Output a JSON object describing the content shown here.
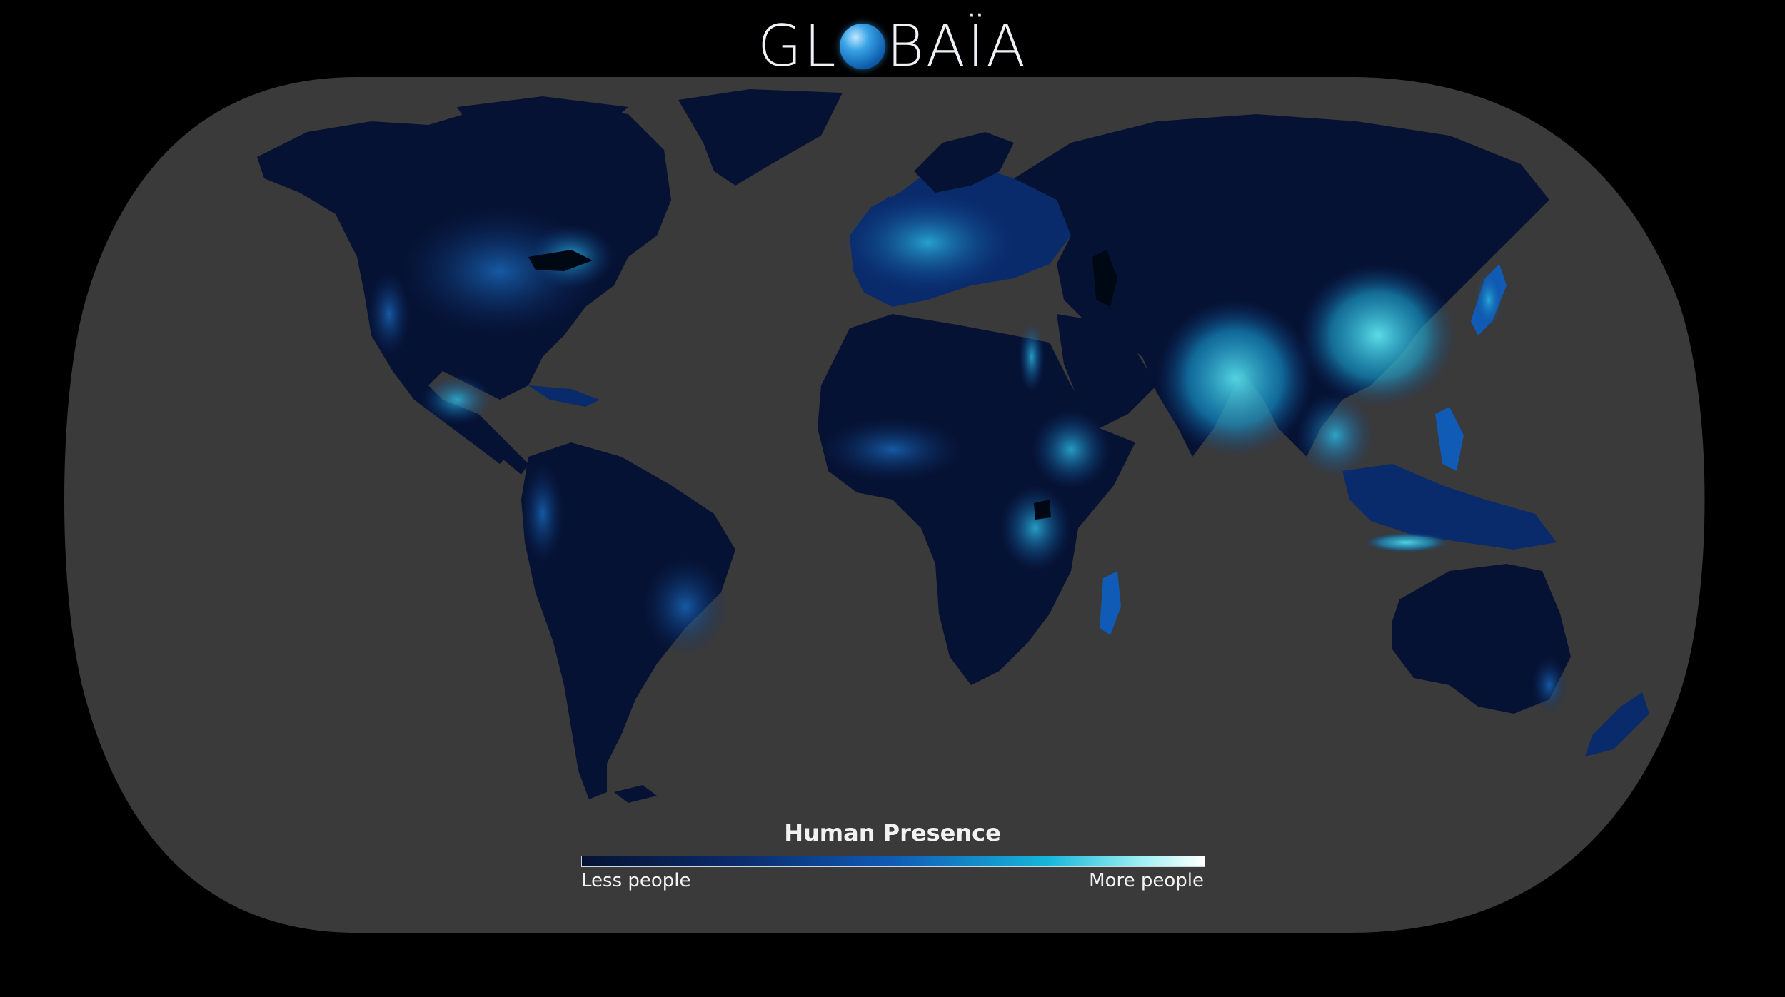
{
  "brand": {
    "prefix": "GL",
    "suffix": "BAÏA"
  },
  "legend": {
    "title": "Human Presence",
    "min_label": "Less people",
    "max_label": "More people",
    "colors": [
      "#061233",
      "#0a2b6b",
      "#0f5bb5",
      "#17b7d9",
      "#9ff0f2",
      "#ffffff"
    ]
  },
  "map": {
    "ocean_color": "#3a3a3a",
    "background_color": "#000000",
    "land_base_color": "#061233",
    "highlight_color": "#2fd3e8"
  }
}
